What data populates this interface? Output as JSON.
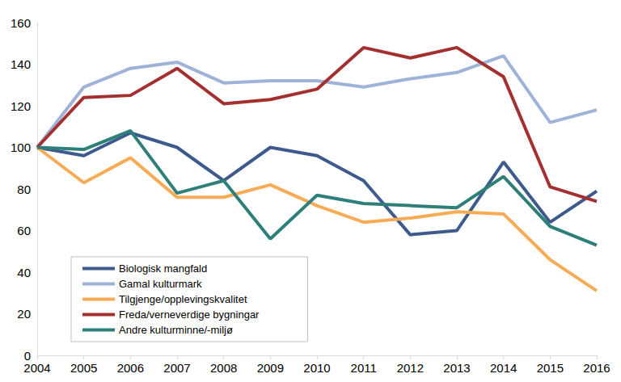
{
  "chart_data": {
    "type": "line",
    "categories": [
      "2004",
      "2005",
      "2006",
      "2007",
      "2008",
      "2009",
      "2010",
      "2011",
      "2012",
      "2013",
      "2014",
      "2015",
      "2016"
    ],
    "series": [
      {
        "name": "Biologisk mangfald",
        "color": "#3d5a8c",
        "values": [
          100,
          96,
          107,
          100,
          84,
          100,
          96,
          84,
          58,
          60,
          93,
          64,
          79
        ]
      },
      {
        "name": "Gamal kulturmark",
        "color": "#9fb2d8",
        "values": [
          100,
          129,
          138,
          141,
          131,
          132,
          132,
          129,
          133,
          136,
          144,
          112,
          118
        ]
      },
      {
        "name": "Tilgjenge/opplevingskvalitet",
        "color": "#f7ab55",
        "values": [
          100,
          83,
          95,
          76,
          76,
          82,
          72,
          64,
          66,
          69,
          68,
          46,
          31
        ]
      },
      {
        "name": "Freda/verneverdige bygningar",
        "color": "#a3302e",
        "values": [
          100,
          124,
          125,
          138,
          121,
          123,
          128,
          148,
          143,
          148,
          134,
          81,
          74
        ]
      },
      {
        "name": "Andre kulturminne/-miljø",
        "color": "#2e7f7a",
        "values": [
          100,
          99,
          108,
          78,
          84,
          56,
          77,
          73,
          72,
          71,
          86,
          62,
          53
        ]
      }
    ],
    "ylim": [
      0,
      160
    ],
    "yticks": [
      0,
      20,
      40,
      60,
      80,
      100,
      120,
      140,
      160
    ],
    "grid": false,
    "legend": "bottom-left"
  }
}
